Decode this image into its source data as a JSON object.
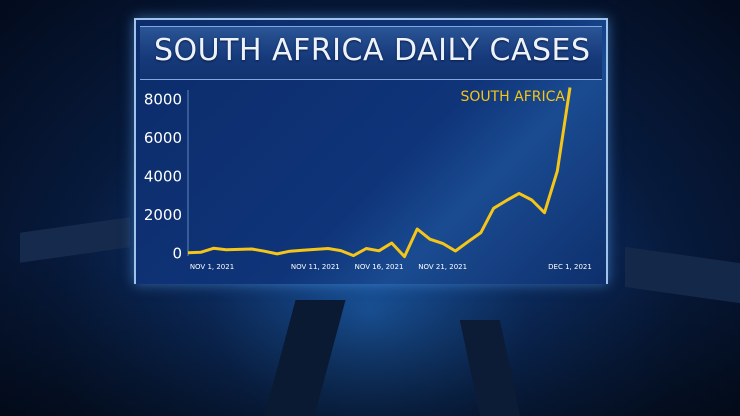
{
  "title": "SOUTH AFRICA DAILY CASES",
  "chart_data": {
    "type": "line",
    "title": "SOUTH AFRICA DAILY CASES",
    "xlabel": "",
    "ylabel": "",
    "x": [
      "2021-11-01",
      "2021-11-02",
      "2021-11-03",
      "2021-11-04",
      "2021-11-05",
      "2021-11-06",
      "2021-11-07",
      "2021-11-08",
      "2021-11-09",
      "2021-11-10",
      "2021-11-11",
      "2021-11-12",
      "2021-11-13",
      "2021-11-14",
      "2021-11-15",
      "2021-11-16",
      "2021-11-17",
      "2021-11-18",
      "2021-11-19",
      "2021-11-20",
      "2021-11-21",
      "2021-11-22",
      "2021-11-23",
      "2021-11-24",
      "2021-11-25",
      "2021-11-26",
      "2021-11-27",
      "2021-11-28",
      "2021-11-29",
      "2021-11-30",
      "2021-12-01"
    ],
    "series": [
      {
        "name": "SOUTH AFRICA",
        "color": "#f5c518",
        "values": [
          0,
          20,
          230,
          150,
          170,
          190,
          80,
          -60,
          80,
          130,
          170,
          220,
          110,
          -150,
          220,
          100,
          500,
          -200,
          1230,
          700,
          480,
          90,
          570,
          1040,
          2300,
          2700,
          3070,
          2730,
          2070,
          4230,
          8560
        ]
      }
    ],
    "yticks": [
      "0",
      "2000",
      "4000",
      "6000",
      "8000"
    ],
    "ytick_values": [
      0,
      2000,
      4000,
      6000,
      8000
    ],
    "xticks": [
      {
        "label": "NOV 1, 2021",
        "date": "2021-11-01"
      },
      {
        "label": "NOV 11, 2021",
        "date": "2021-11-11"
      },
      {
        "label": "NOV 16, 2021",
        "date": "2021-11-16"
      },
      {
        "label": "NOV 21, 2021",
        "date": "2021-11-21"
      },
      {
        "label": "DEC 1, 2021",
        "date": "2021-12-01"
      }
    ],
    "ylim": [
      0,
      8700
    ],
    "grid": false,
    "legend": "top-right"
  }
}
